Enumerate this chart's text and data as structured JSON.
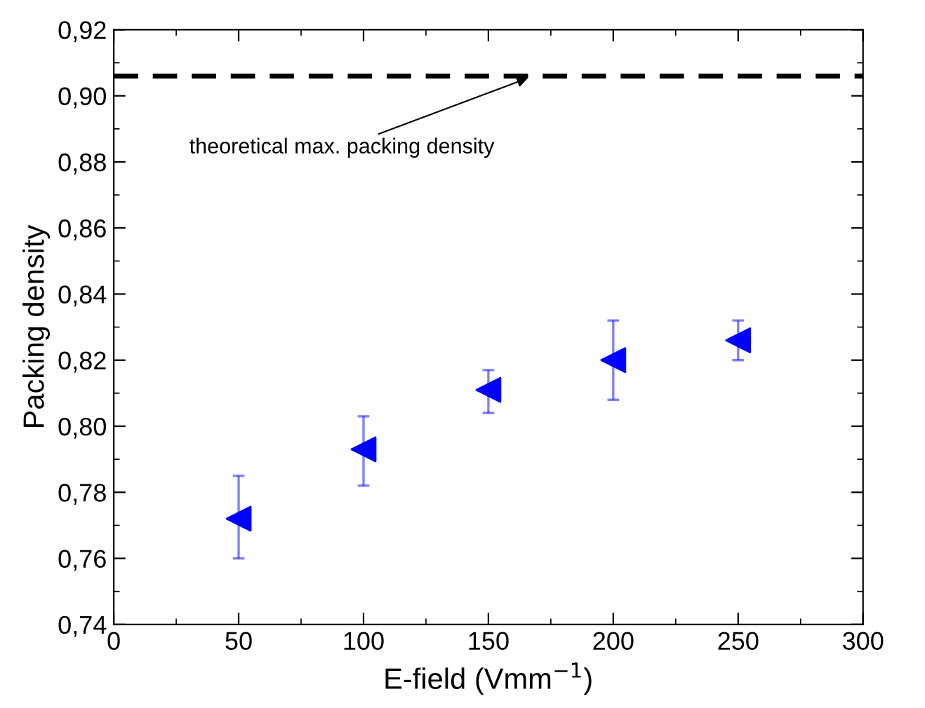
{
  "chart_data": {
    "type": "scatter",
    "xlabel": "E-field (Vmm$^{−1}$)",
    "ylabel": "Packing density",
    "x": [
      50,
      100,
      150,
      200,
      250
    ],
    "series": [
      {
        "color": "#0000ff",
        "values": [
          0.772,
          0.793,
          0.811,
          0.82,
          0.826
        ],
        "errors": [
          [
            0.76,
            0.785
          ],
          [
            0.782,
            0.803
          ],
          [
            0.804,
            0.817
          ],
          [
            0.808,
            0.832
          ],
          [
            0.82,
            0.832
          ]
        ]
      }
    ],
    "marker": "triangle",
    "xlim": [
      0,
      300
    ],
    "xticks": [
      0,
      50,
      100,
      150,
      200,
      250,
      300
    ],
    "ylim": [
      0.74,
      0.92
    ],
    "yticks": [
      {
        "value": 0.74,
        "label": "0,74"
      },
      {
        "value": 0.76,
        "label": "0,76"
      },
      {
        "value": 0.78,
        "label": "0,78"
      },
      {
        "value": 0.8,
        "label": "0,80"
      },
      {
        "value": 0.82,
        "label": "0,82"
      },
      {
        "value": 0.84,
        "label": "0,84"
      },
      {
        "value": 0.86,
        "label": "0,86"
      },
      {
        "value": 0.88,
        "label": "0,88"
      },
      {
        "value": 0.9,
        "label": "0,90"
      },
      {
        "value": 0.92,
        "label": "0,92"
      }
    ],
    "ref_lines": [
      {
        "axis": "y",
        "value": 0.906,
        "color": "#000000",
        "line_style": "dashed",
        "label": "theoretical max. packing density"
      }
    ],
    "grid": false,
    "legend": false
  }
}
